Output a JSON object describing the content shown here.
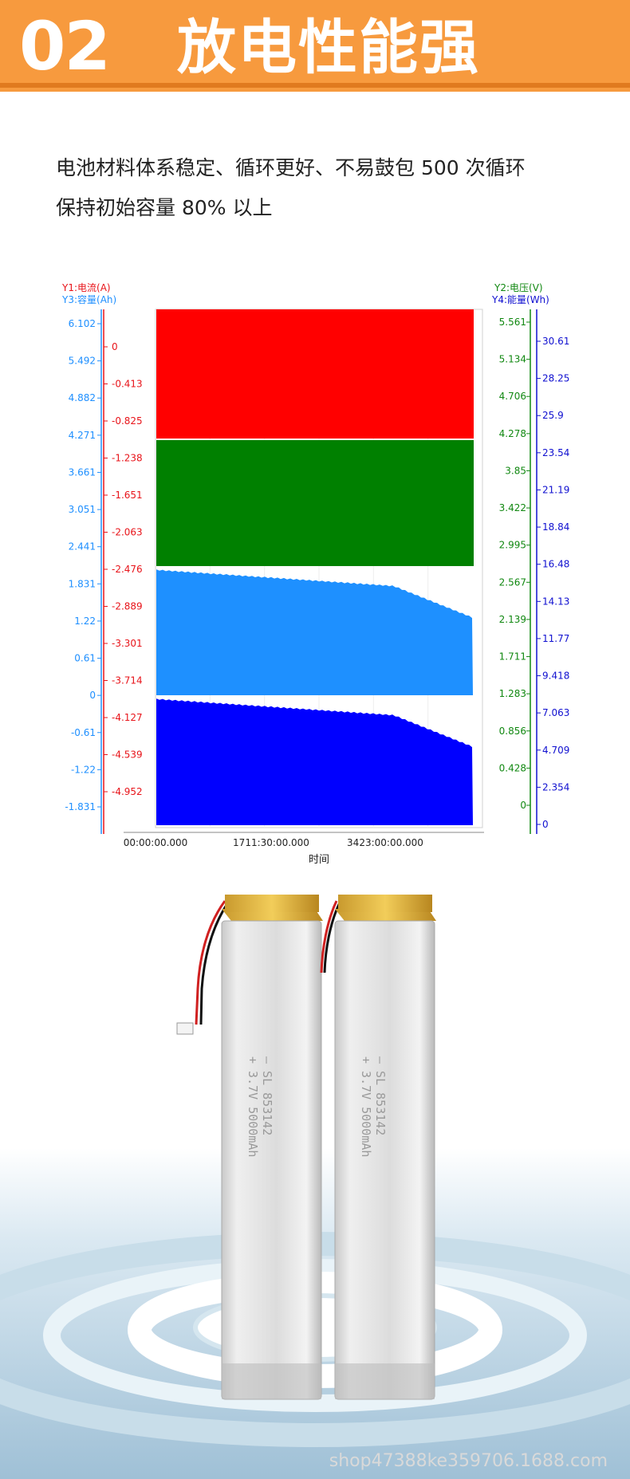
{
  "banner": {
    "number": "02",
    "title": "放电性能强"
  },
  "description": {
    "line1": "电池材料体系稳定、循环更好、不易鼓包 500 次循环",
    "line2": "保持初始容量 80% 以上"
  },
  "chart_data": {
    "type": "area",
    "xlabel": "时间",
    "x_ticks": [
      "00:00:00.000",
      "1711:30:00.000",
      "3423:00:00.000"
    ],
    "axes": {
      "y1": {
        "label": "Y1:电流(A)",
        "color": "#e8141a",
        "ticks": [
          "0",
          "-0.413",
          "-0.825",
          "-1.238",
          "-1.651",
          "-2.063",
          "-2.476",
          "-2.889",
          "-3.301",
          "-3.714",
          "-4.127",
          "-4.539",
          "-4.952"
        ]
      },
      "y3": {
        "label": "Y3:容量(Ah)",
        "color": "#1e8fff",
        "ticks": [
          "6.102",
          "5.492",
          "4.882",
          "4.271",
          "3.661",
          "3.051",
          "2.441",
          "1.831",
          "1.22",
          "0.61",
          "0",
          "-0.61",
          "-1.22",
          "-1.831"
        ]
      },
      "y2": {
        "label": "Y2:电压(V)",
        "color": "#118811",
        "ticks": [
          "5.561",
          "5.134",
          "4.706",
          "4.278",
          "3.85",
          "3.422",
          "2.995",
          "2.567",
          "2.139",
          "1.711",
          "1.283",
          "0.856",
          "0.428",
          "0"
        ]
      },
      "y4": {
        "label": "Y4:能量(Wh)",
        "color": "#1010d0",
        "ticks": [
          "30.61",
          "28.25",
          "25.9",
          "23.54",
          "21.19",
          "18.84",
          "16.48",
          "14.13",
          "11.77",
          "9.418",
          "7.063",
          "4.709",
          "2.354",
          "0"
        ]
      }
    },
    "series": [
      {
        "name": "Y1:电流(A)",
        "color": "#ff0000"
      },
      {
        "name": "Y2:电压(V)",
        "color": "#008000"
      },
      {
        "name": "Y3:容量(Ah)",
        "color": "#1e90ff"
      },
      {
        "name": "Y4:能量(Wh)",
        "color": "#0000ff"
      }
    ]
  },
  "product": {
    "battery_print": "— SL  853142\n+ 3.7V 5000mAh"
  },
  "watermark": "shop47388ke359706.1688.com"
}
